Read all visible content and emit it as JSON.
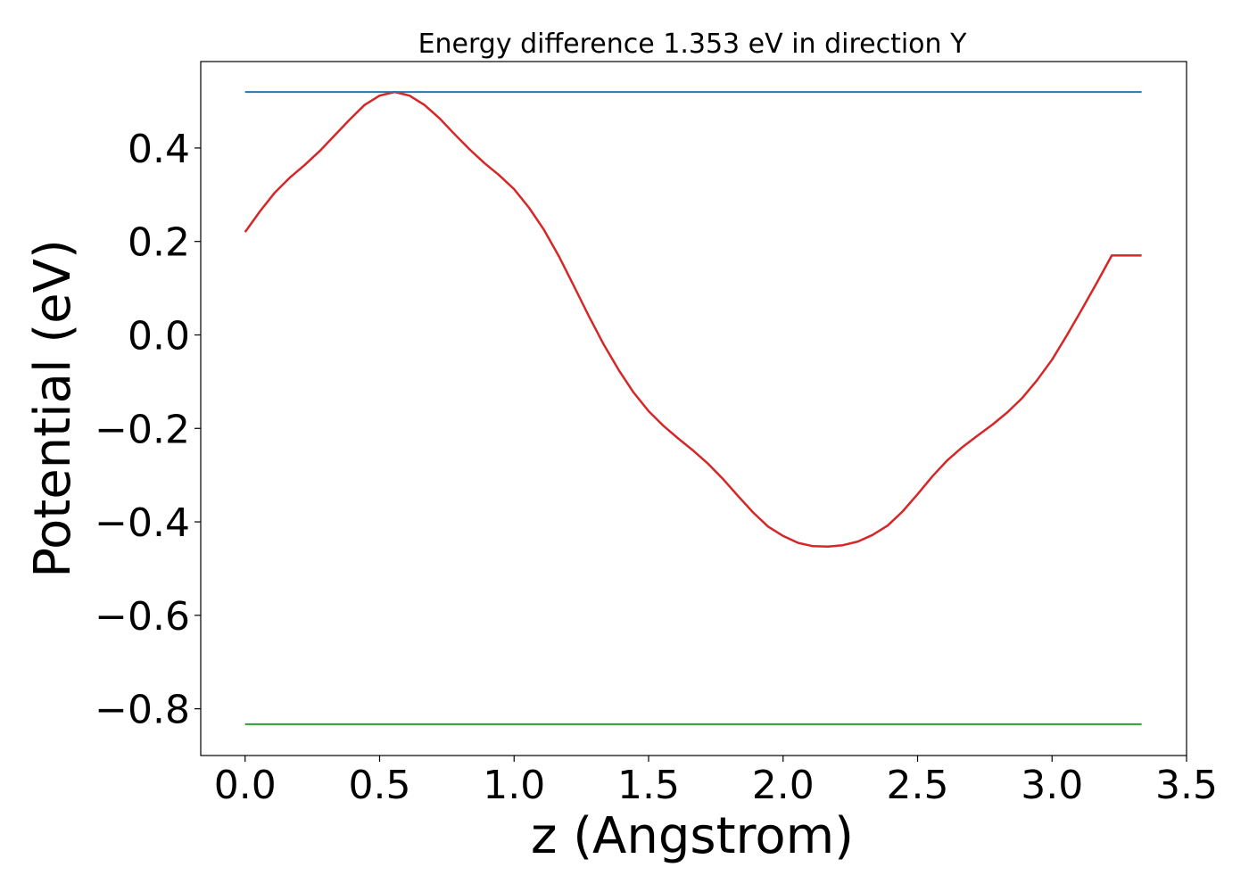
{
  "chart_data": {
    "type": "line",
    "title": "Energy difference 1.353 eV in direction Y",
    "xlabel": "z (Angstrom)",
    "ylabel": "Potential (eV)",
    "xlim": [
      -0.165,
      3.5
    ],
    "ylim": [
      -0.9,
      0.585
    ],
    "xticks": [
      0.0,
      0.5,
      1.0,
      1.5,
      2.0,
      2.5,
      3.0,
      3.5
    ],
    "xtick_labels": [
      "0.0",
      "0.5",
      "1.0",
      "1.5",
      "2.0",
      "2.5",
      "3.0",
      "3.5"
    ],
    "yticks": [
      -0.8,
      -0.6,
      -0.4,
      -0.2,
      0.0,
      0.2,
      0.4
    ],
    "ytick_labels": [
      "−0.8",
      "−0.6",
      "−0.4",
      "−0.2",
      "0.0",
      "0.2",
      "0.4"
    ],
    "grid": false,
    "series": [
      {
        "color": "#d62728",
        "x": [
          0.0,
          0.056,
          0.111,
          0.167,
          0.222,
          0.278,
          0.333,
          0.389,
          0.444,
          0.5,
          0.556,
          0.611,
          0.667,
          0.722,
          0.778,
          0.833,
          0.889,
          0.944,
          1.0,
          1.056,
          1.111,
          1.167,
          1.222,
          1.278,
          1.333,
          1.389,
          1.444,
          1.5,
          1.556,
          1.611,
          1.667,
          1.722,
          1.778,
          1.833,
          1.889,
          1.944,
          2.0,
          2.056,
          2.111,
          2.167,
          2.222,
          2.278,
          2.333,
          2.389,
          2.444,
          2.5,
          2.556,
          2.611,
          2.667,
          2.722,
          2.778,
          2.833,
          2.889,
          2.944,
          3.0,
          3.056,
          3.111,
          3.167,
          3.222,
          3.278,
          3.333
        ],
        "y": [
          0.22,
          0.265,
          0.305,
          0.337,
          0.364,
          0.394,
          0.427,
          0.461,
          0.492,
          0.512,
          0.52,
          0.512,
          0.492,
          0.464,
          0.43,
          0.398,
          0.368,
          0.342,
          0.312,
          0.272,
          0.225,
          0.168,
          0.105,
          0.04,
          -0.02,
          -0.075,
          -0.123,
          -0.163,
          -0.195,
          -0.222,
          -0.248,
          -0.276,
          -0.309,
          -0.345,
          -0.38,
          -0.41,
          -0.43,
          -0.445,
          -0.452,
          -0.453,
          -0.45,
          -0.442,
          -0.428,
          -0.408,
          -0.378,
          -0.341,
          -0.302,
          -0.268,
          -0.24,
          -0.216,
          -0.192,
          -0.166,
          -0.135,
          -0.097,
          -0.053,
          0.0,
          0.055,
          0.112,
          0.17,
          0.17,
          0.17
        ]
      },
      {
        "color": "#1f77b4",
        "x": [
          0.0,
          3.333
        ],
        "y": [
          0.52,
          0.52
        ]
      },
      {
        "color": "#2ca02c",
        "x": [
          0.0,
          3.333
        ],
        "y": [
          -0.833,
          -0.833
        ]
      }
    ]
  }
}
